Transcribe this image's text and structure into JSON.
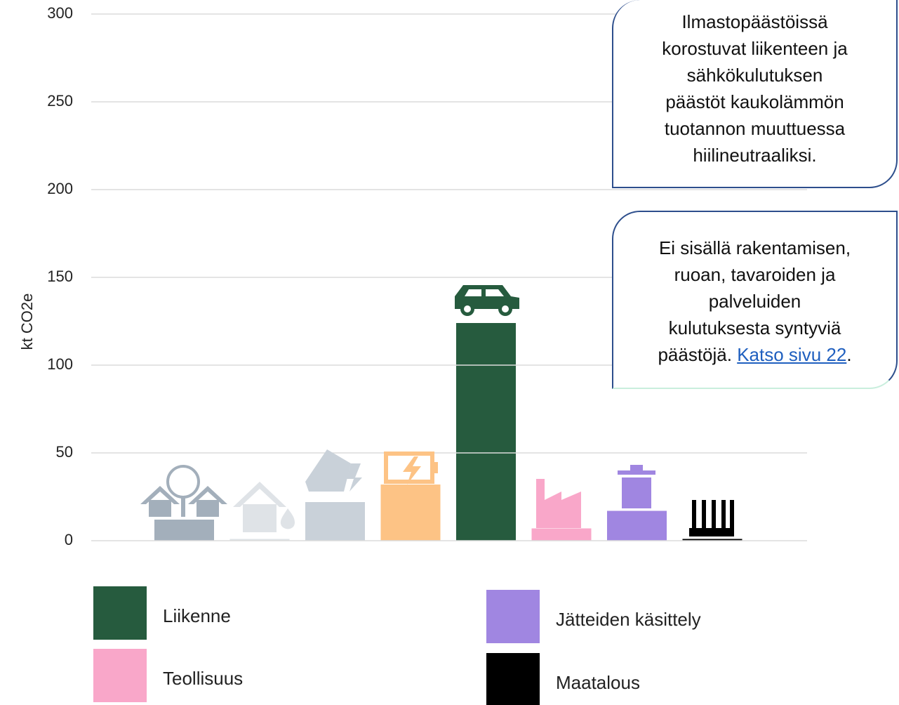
{
  "chart_data": {
    "type": "bar",
    "y_label": "kt CO2e",
    "categories": [
      null,
      null,
      null,
      null,
      "Liikenne",
      "Teollisuus",
      "Jätteiden käsittely",
      "Maatalous"
    ],
    "values": [
      12,
      1,
      22,
      32,
      124,
      7,
      17,
      1
    ],
    "colors": [
      "#a3afbb",
      "#dfe3e7",
      "#c9d1d9",
      "#fdc385",
      "#265b3e",
      "#f9a7c9",
      "#a086e1",
      "#000000"
    ],
    "ylim": [
      0,
      300
    ],
    "yticks": [
      0,
      50,
      100,
      150,
      200,
      250,
      300
    ],
    "grid": true,
    "annotations": [
      {
        "lines": [
          "Ilmastopäästöissä",
          "korostuvat liikenteen ja",
          "sähkökulutuksen",
          "päästöt kaukolämmön",
          "tuotannon muuttuessa",
          "hiilineutraaliksi."
        ]
      },
      {
        "lines": [
          "Ei sisällä rakentamisen,",
          "ruoan, tavaroiden ja",
          "palveluiden",
          "kulutuksesta syntyviä"
        ],
        "tail": "päästöjä.",
        "link": "Katso sivu 22",
        "end": "."
      }
    ]
  }
}
